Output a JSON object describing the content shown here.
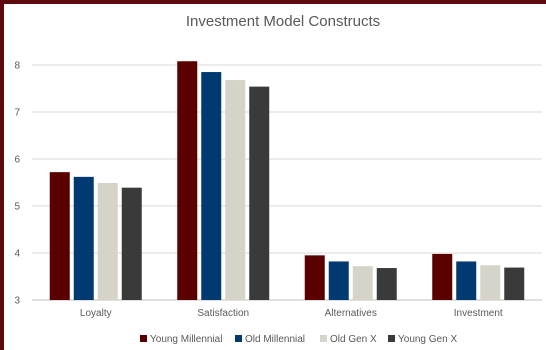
{
  "chart_data": {
    "type": "bar",
    "title": "Investment Model Constructs",
    "xlabel": "",
    "ylabel": "",
    "ylim": [
      3,
      8.5
    ],
    "yticks": [
      3,
      4,
      5,
      6,
      7,
      8
    ],
    "grid": true,
    "legend_position": "bottom",
    "categories": [
      "Loyalty",
      "Satisfaction",
      "Alternatives",
      "Investment"
    ],
    "series": [
      {
        "name": "Young Millennial",
        "color": "#5a0000",
        "values": [
          5.72,
          8.08,
          3.95,
          3.98
        ]
      },
      {
        "name": "Old Millennial",
        "color": "#003a70",
        "values": [
          5.62,
          7.85,
          3.82,
          3.82
        ]
      },
      {
        "name": "Old Gen X",
        "color": "#d6d3c8",
        "values": [
          5.49,
          7.68,
          3.72,
          3.74
        ]
      },
      {
        "name": "Young Gen X",
        "color": "#3a3a3a",
        "values": [
          5.39,
          7.54,
          3.68,
          3.69
        ]
      }
    ]
  }
}
